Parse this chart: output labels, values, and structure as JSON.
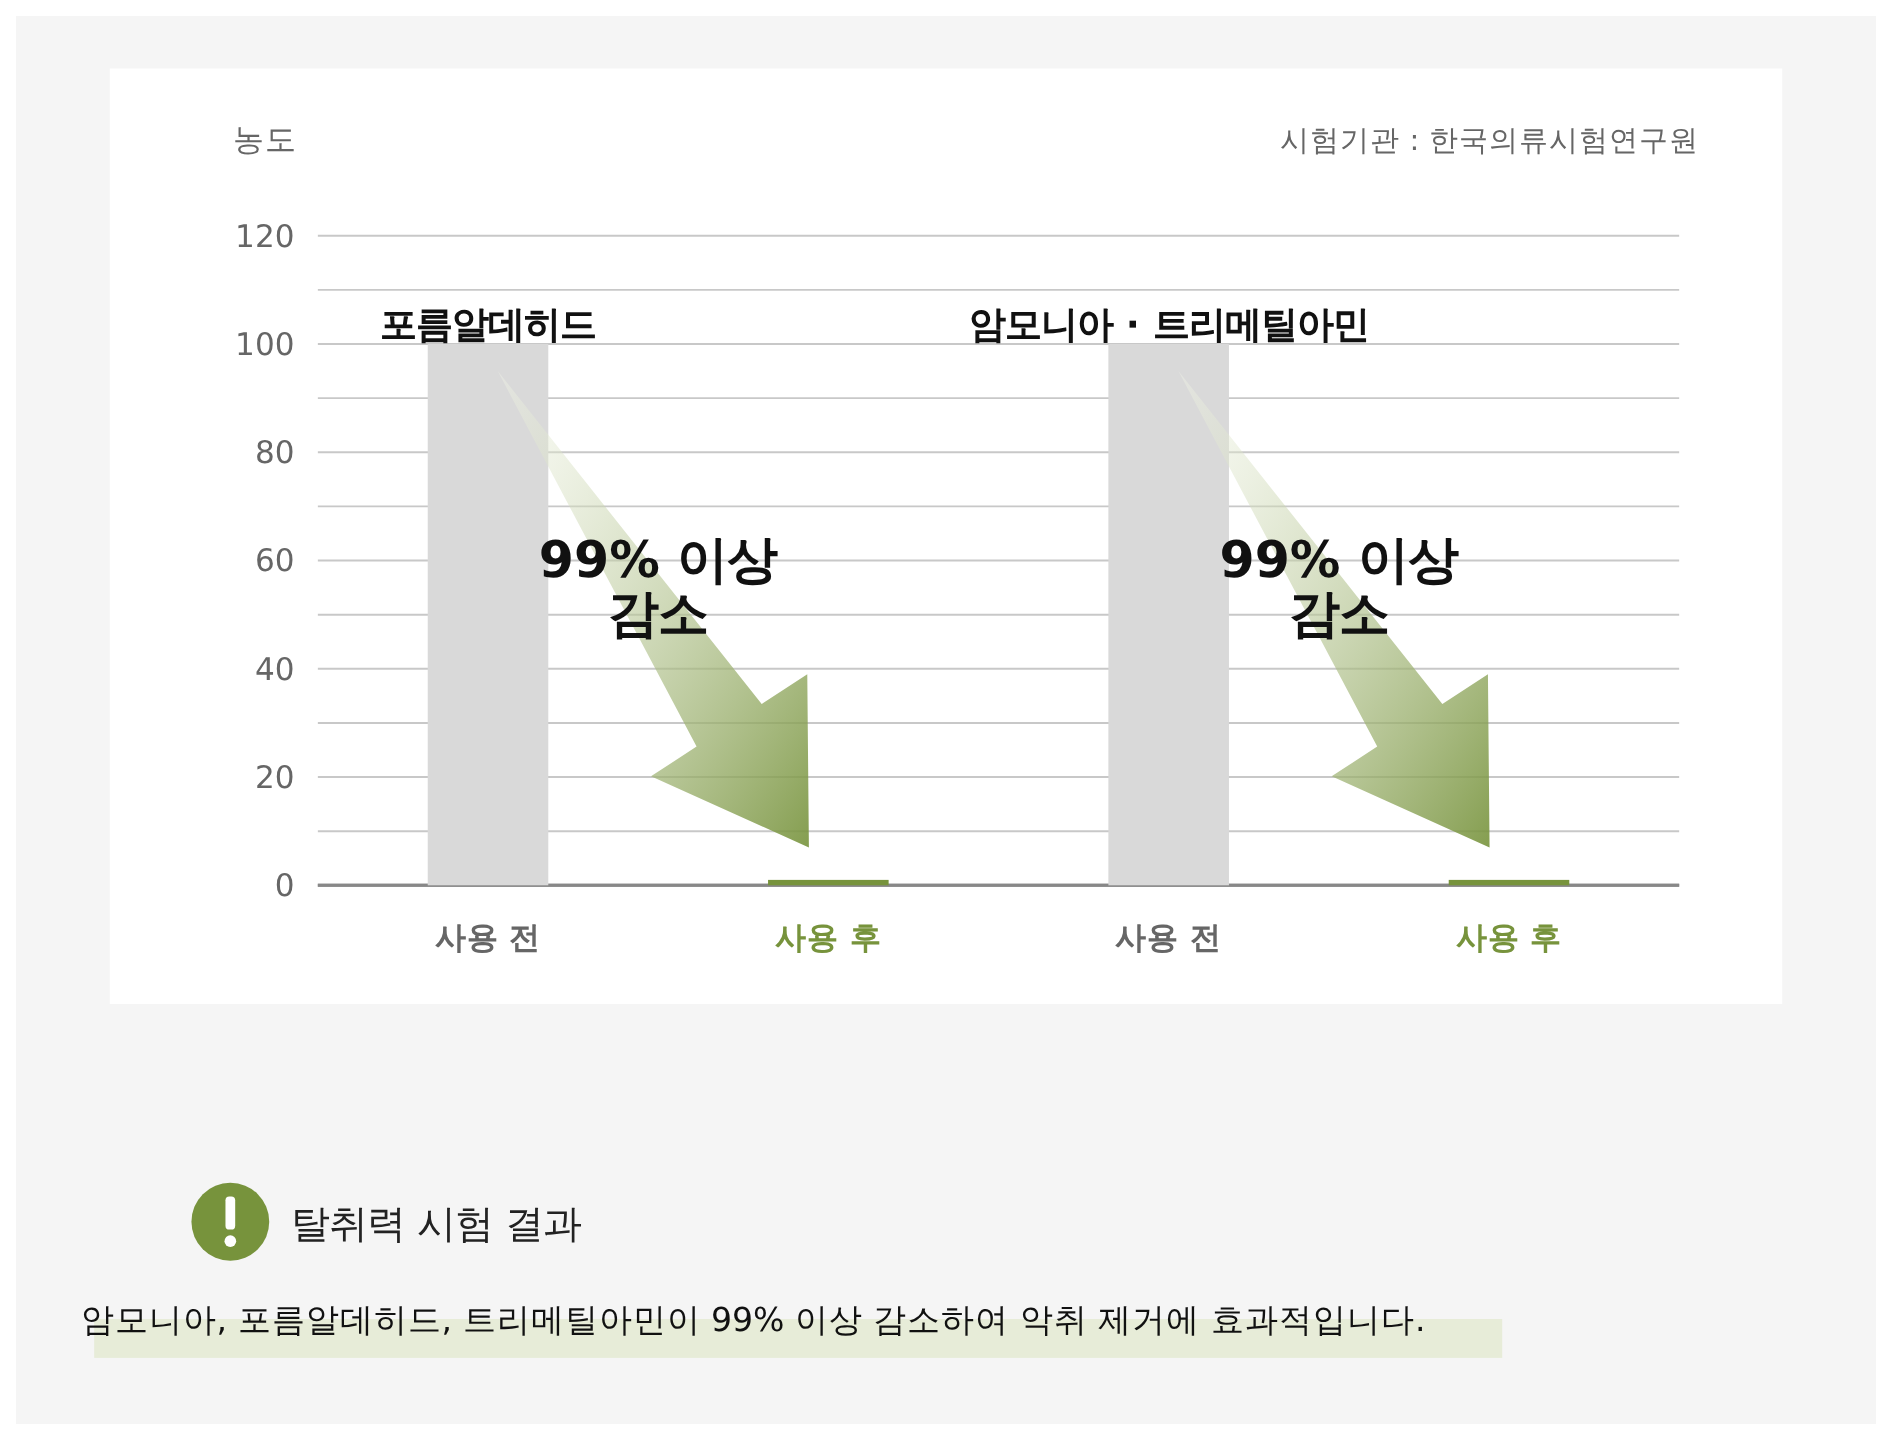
{
  "chart_data": {
    "type": "bar",
    "ylabel": "농도",
    "categories": [
      "사용 전",
      "사용 후",
      "사용 전",
      "사용 후"
    ],
    "values": [
      100,
      1,
      100,
      1
    ],
    "colors": [
      "#d9d9d9",
      "#77933c",
      "#d9d9d9",
      "#77933c"
    ],
    "ylim": [
      0,
      120
    ],
    "yticks": [
      0,
      {
        "value": 10,
        "label": null
      },
      20,
      {
        "value": 30,
        "label": null
      },
      40,
      {
        "value": 50,
        "label": null
      },
      60,
      {
        "value": 70,
        "label": null
      },
      80,
      {
        "value": 90,
        "label": null
      },
      100,
      {
        "value": 110,
        "label": null
      },
      120
    ],
    "grid": "y",
    "annotations": [
      "포름알데히드",
      "암모니아 · 트리메틸아민",
      "99% 이상\n감소",
      "99% 이상\n감소",
      "시험기관 : 한국의류시험연구원",
      "탈취력 시험 결과",
      "암모니아, 포름알데히드, 트리메틸아민이 99% 이상 감소하여 악취 제거에 효과적입니다."
    ]
  }
}
